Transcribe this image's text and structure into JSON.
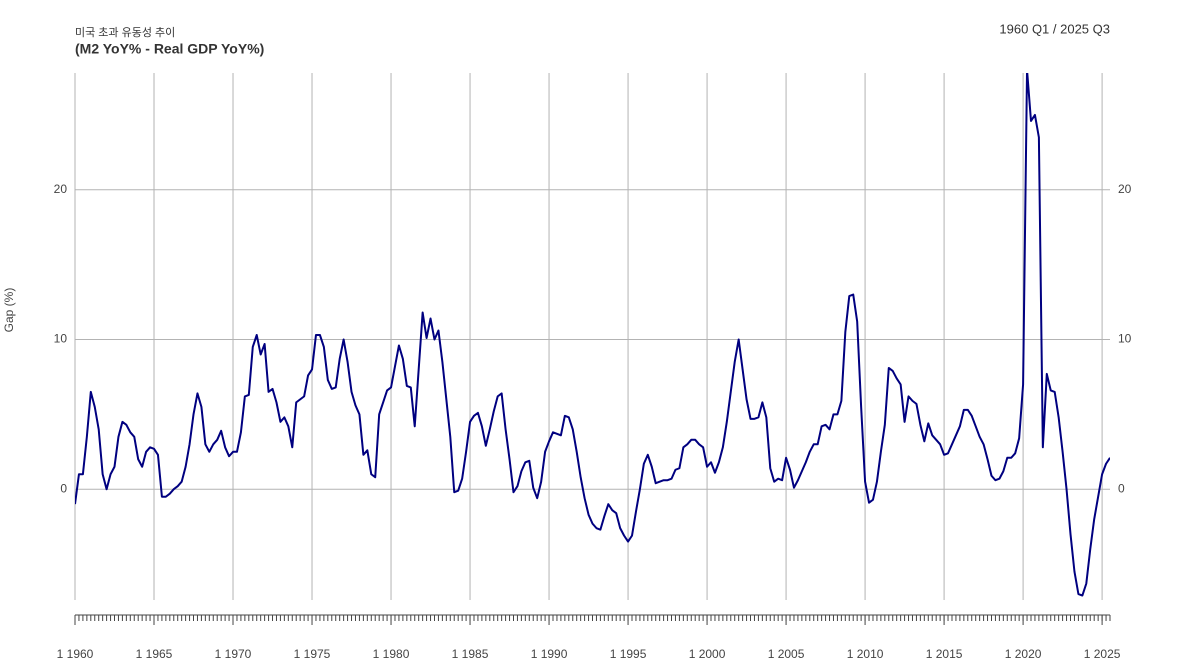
{
  "chart_data": {
    "type": "line",
    "title": "미국 초과 유동성 추이",
    "subtitle": "(M2 YoY% - Real GDP YoY%)",
    "annotation": "1960 Q1 / 2025 Q3",
    "y_label": "Gap (%)",
    "x": [
      1960,
      1960.25,
      1960.5,
      1960.75,
      1961,
      1961.25,
      1961.5,
      1961.75,
      1962,
      1962.25,
      1962.5,
      1962.75,
      1963,
      1963.25,
      1963.5,
      1963.75,
      1964,
      1964.25,
      1964.5,
      1964.75,
      1965,
      1965.25,
      1965.5,
      1965.75,
      1966,
      1966.25,
      1966.5,
      1966.75,
      1967,
      1967.25,
      1967.5,
      1967.75,
      1968,
      1968.25,
      1968.5,
      1968.75,
      1969,
      1969.25,
      1969.5,
      1969.75,
      1970,
      1970.25,
      1970.5,
      1970.75,
      1971,
      1971.25,
      1971.5,
      1971.75,
      1972,
      1972.25,
      1972.5,
      1972.75,
      1973,
      1973.25,
      1973.5,
      1973.75,
      1974,
      1974.25,
      1974.5,
      1974.75,
      1975,
      1975.25,
      1975.5,
      1975.75,
      1976,
      1976.25,
      1976.5,
      1976.75,
      1977,
      1977.25,
      1977.5,
      1977.75,
      1978,
      1978.25,
      1978.5,
      1978.75,
      1979,
      1979.25,
      1979.5,
      1979.75,
      1980,
      1980.25,
      1980.5,
      1980.75,
      1981,
      1981.25,
      1981.5,
      1981.75,
      1982,
      1982.25,
      1982.5,
      1982.75,
      1983,
      1983.25,
      1983.5,
      1983.75,
      1984,
      1984.25,
      1984.5,
      1984.75,
      1985,
      1985.25,
      1985.5,
      1985.75,
      1986,
      1986.25,
      1986.5,
      1986.75,
      1987,
      1987.25,
      1987.5,
      1987.75,
      1988,
      1988.25,
      1988.5,
      1988.75,
      1989,
      1989.25,
      1989.5,
      1989.75,
      1990,
      1990.25,
      1990.5,
      1990.75,
      1991,
      1991.25,
      1991.5,
      1991.75,
      1992,
      1992.25,
      1992.5,
      1992.75,
      1993,
      1993.25,
      1993.5,
      1993.75,
      1994,
      1994.25,
      1994.5,
      1994.75,
      1995,
      1995.25,
      1995.5,
      1995.75,
      1996,
      1996.25,
      1996.5,
      1996.75,
      1997,
      1997.25,
      1997.5,
      1997.75,
      1998,
      1998.25,
      1998.5,
      1998.75,
      1999,
      1999.25,
      1999.5,
      1999.75,
      2000,
      2000.25,
      2000.5,
      2000.75,
      2001,
      2001.25,
      2001.5,
      2001.75,
      2002,
      2002.25,
      2002.5,
      2002.75,
      2003,
      2003.25,
      2003.5,
      2003.75,
      2004,
      2004.25,
      2004.5,
      2004.75,
      2005,
      2005.25,
      2005.5,
      2005.75,
      2006,
      2006.25,
      2006.5,
      2006.75,
      2007,
      2007.25,
      2007.5,
      2007.75,
      2008,
      2008.25,
      2008.5,
      2008.75,
      2009,
      2009.25,
      2009.5,
      2009.75,
      2010,
      2010.25,
      2010.5,
      2010.75,
      2011,
      2011.25,
      2011.5,
      2011.75,
      2012,
      2012.25,
      2012.5,
      2012.75,
      2013,
      2013.25,
      2013.5,
      2013.75,
      2014,
      2014.25,
      2014.5,
      2014.75,
      2015,
      2015.25,
      2015.5,
      2015.75,
      2016,
      2016.25,
      2016.5,
      2016.75,
      2017,
      2017.25,
      2017.5,
      2017.75,
      2018,
      2018.25,
      2018.5,
      2018.75,
      2019,
      2019.25,
      2019.5,
      2019.75,
      2020,
      2020.25,
      2020.5,
      2020.75,
      2021,
      2021.25,
      2021.5,
      2021.75,
      2022,
      2022.25,
      2022.5,
      2022.75,
      2023,
      2023.25,
      2023.5,
      2023.75,
      2024,
      2024.25,
      2024.5,
      2024.75,
      2025,
      2025.25,
      2025.5
    ],
    "series": [
      {
        "name": "Gap",
        "color": "#000080",
        "values": [
          -1,
          1,
          1,
          3.5,
          6.5,
          5.5,
          4,
          1,
          0,
          1,
          1.5,
          3.5,
          4.5,
          4.3,
          3.8,
          3.5,
          2,
          1.5,
          2.5,
          2.8,
          2.7,
          2.3,
          -0.5,
          -0.5,
          -0.3,
          0,
          0.2,
          0.5,
          1.5,
          3,
          5,
          6.4,
          5.5,
          3,
          2.5,
          3,
          3.3,
          3.9,
          2.8,
          2.2,
          2.5,
          2.5,
          3.8,
          6.2,
          6.3,
          9.5,
          10.3,
          9,
          9.7,
          6.5,
          6.7,
          5.8,
          4.5,
          4.8,
          4.2,
          2.8,
          5.8,
          6,
          6.2,
          7.6,
          8,
          10.3,
          10.3,
          9.5,
          7.3,
          6.7,
          6.8,
          8.7,
          10,
          8.5,
          6.5,
          5.6,
          5,
          2.3,
          2.6,
          1,
          0.8,
          5,
          5.8,
          6.6,
          6.8,
          8.2,
          9.6,
          8.7,
          6.9,
          6.8,
          4.2,
          8,
          11.8,
          10.1,
          11.4,
          10,
          10.6,
          8.5,
          6,
          3.5,
          -0.2,
          -0.1,
          0.7,
          2.5,
          4.5,
          4.9,
          5.1,
          4.2,
          2.9,
          4,
          5.2,
          6.2,
          6.4,
          4,
          2,
          -0.2,
          0.2,
          1.2,
          1.8,
          1.9,
          0.1,
          -0.6,
          0.5,
          2.5,
          3.2,
          3.8,
          3.7,
          3.6,
          4.9,
          4.8,
          4,
          2.5,
          0.8,
          -0.6,
          -1.7,
          -2.3,
          -2.6,
          -2.7,
          -1.8,
          -1,
          -1.4,
          -1.6,
          -2.6,
          -3.1,
          -3.5,
          -3.1,
          -1.5,
          0,
          1.7,
          2.3,
          1.5,
          0.4,
          0.5,
          0.6,
          0.6,
          0.7,
          1.3,
          1.4,
          2.8,
          3,
          3.3,
          3.3,
          3,
          2.8,
          1.5,
          1.8,
          1.1,
          1.8,
          2.8,
          4.5,
          6.5,
          8.5,
          10,
          8,
          6,
          4.7,
          4.7,
          4.8,
          5.8,
          4.8,
          1.4,
          0.5,
          0.7,
          0.6,
          2.1,
          1.3,
          0.1,
          0.6,
          1.2,
          1.8,
          2.5,
          3,
          3,
          4.2,
          4.3,
          4,
          5,
          5,
          5.9,
          10.5,
          12.9,
          13,
          11.2,
          5.5,
          0.5,
          -0.9,
          -0.7,
          0.5,
          2.5,
          4.3,
          8.1,
          7.9,
          7.4,
          7,
          4.5,
          6.2,
          5.9,
          5.7,
          4.3,
          3.2,
          4.4,
          3.6,
          3.3,
          3,
          2.3,
          2.4,
          3,
          3.6,
          4.2,
          5.3,
          5.3,
          4.9,
          4.2,
          3.5,
          3,
          2,
          0.9,
          0.6,
          0.7,
          1.2,
          2.1,
          2.1,
          2.4,
          3.4,
          7,
          28,
          24.6,
          25,
          23.5,
          2.8,
          7.7,
          6.6,
          6.5,
          4.8,
          2.5,
          0,
          -3,
          -5.5,
          -7,
          -7.1,
          -6.3,
          -4,
          -2,
          -0.5,
          1,
          1.7,
          2.1
        ]
      }
    ],
    "xlim": [
      1960,
      2025.5
    ],
    "xticks": [
      {
        "value": 1960,
        "label": "1 1960"
      },
      {
        "value": 1965,
        "label": "1 1965"
      },
      {
        "value": 1970,
        "label": "1 1970"
      },
      {
        "value": 1975,
        "label": "1 1975"
      },
      {
        "value": 1980,
        "label": "1 1980"
      },
      {
        "value": 1985,
        "label": "1 1985"
      },
      {
        "value": 1990,
        "label": "1 1990"
      },
      {
        "value": 1995,
        "label": "1 1995"
      },
      {
        "value": 2000,
        "label": "1 2000"
      },
      {
        "value": 2005,
        "label": "1 2005"
      },
      {
        "value": 2010,
        "label": "1 2010"
      },
      {
        "value": 2015,
        "label": "1 2015"
      },
      {
        "value": 2020,
        "label": "1 2020"
      },
      {
        "value": 2025,
        "label": "1 2025"
      }
    ],
    "ylim": [
      -7.4,
      27.8
    ],
    "yticks": [
      0,
      10,
      20
    ],
    "grid": true
  }
}
